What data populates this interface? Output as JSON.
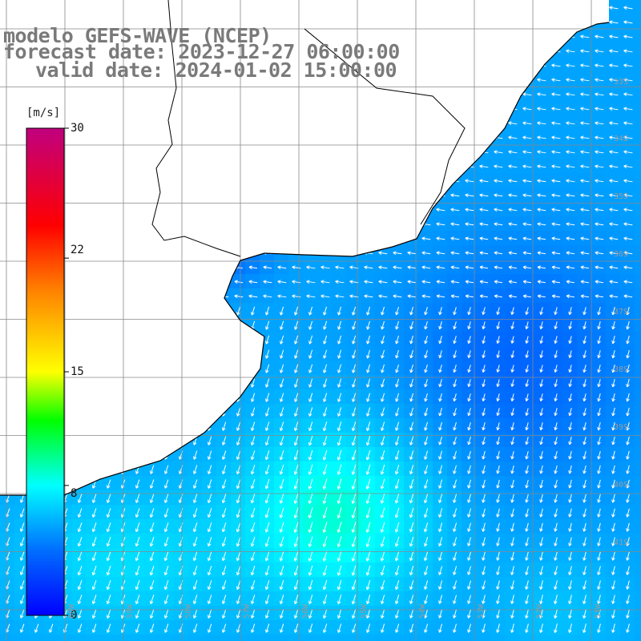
{
  "title": {
    "line1": "modelo GEFS-WAVE (NCEP)",
    "line2": "forecast date: 2023-12-27 06:00:00",
    "line3": "valid date: 2024-01-02 15:00:00"
  },
  "colorbar": {
    "unit": "[m/s]",
    "ticks": [
      "30",
      "22",
      "15",
      "8",
      "0"
    ],
    "values": [
      30,
      22,
      15,
      8,
      0
    ],
    "colors": [
      "#0000ff",
      "#00aaff",
      "#00ffff",
      "#00ff00",
      "#ffff00",
      "#ff7f00",
      "#ff0000",
      "#c0007f"
    ]
  },
  "map": {
    "lat_labels": [
      "33S",
      "34S",
      "35S",
      "36S",
      "37S",
      "38S",
      "39S",
      "40S",
      "41S"
    ],
    "lon_labels": [
      "60W",
      "59W",
      "58W",
      "57W",
      "56W",
      "55W",
      "54W",
      "53W",
      "52W",
      "51W"
    ],
    "land_color": "#ffffff",
    "grid_color": "#888888",
    "coast_color": "#000000",
    "arrow_color": "#ffffff"
  }
}
